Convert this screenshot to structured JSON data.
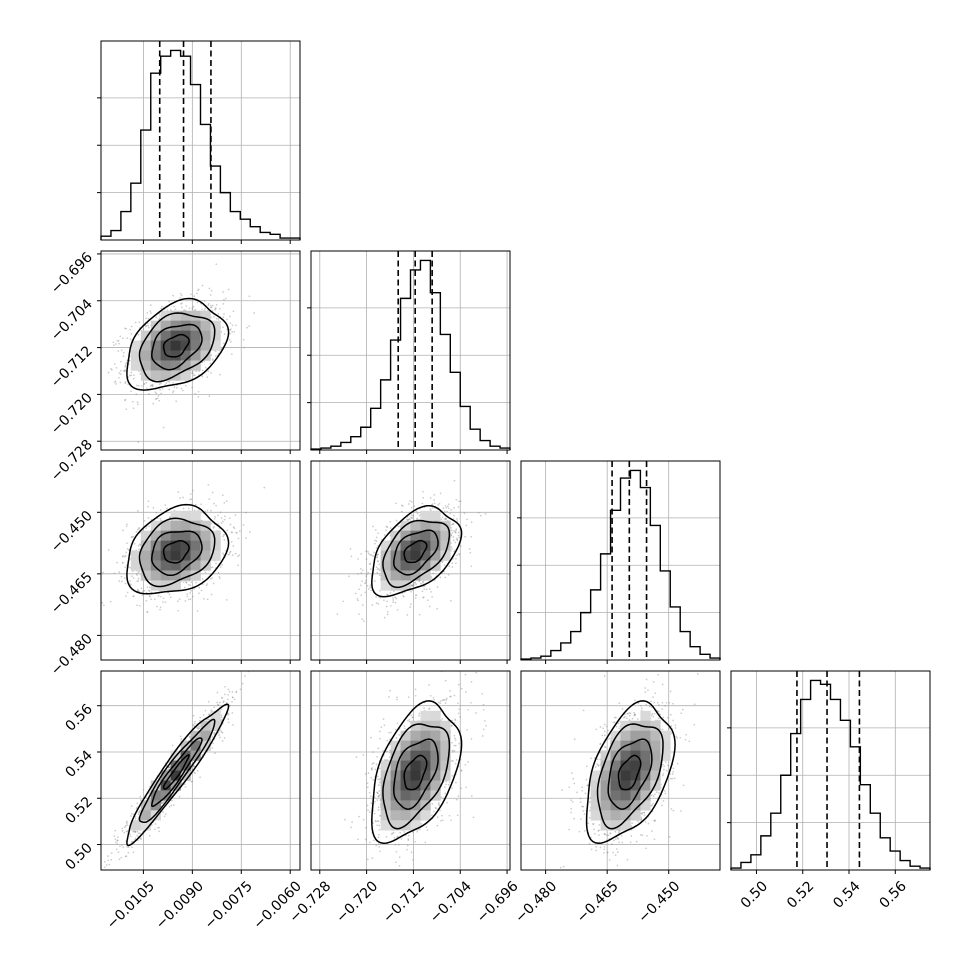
{
  "chart_data": {
    "type": "corner",
    "grid": true,
    "parameters": [
      {
        "range": [
          -0.0118,
          -0.0057
        ],
        "ticks": [
          -0.0105,
          -0.009,
          -0.0075,
          -0.006
        ],
        "tick_labels": [
          "−0.0105",
          "−0.0090",
          "−0.0075",
          "−0.0060"
        ],
        "quantiles": [
          -0.01,
          -0.00927,
          -0.00843
        ],
        "hist": [
          0.02,
          0.05,
          0.15,
          0.3,
          0.58,
          0.88,
          0.97,
          1.0,
          0.97,
          0.82,
          0.61,
          0.39,
          0.25,
          0.15,
          0.11,
          0.07,
          0.04,
          0.03,
          0.01,
          0.01
        ],
        "hist_ylim": [
          0,
          1.05
        ],
        "hist_ytick_fractions": [
          0.25,
          0.5,
          0.75
        ],
        "mean": -0.0095,
        "sd": 0.00065
      },
      {
        "range": [
          -0.7295,
          -0.6955
        ],
        "ticks": [
          -0.728,
          -0.72,
          -0.712,
          -0.704,
          -0.696
        ],
        "tick_labels": [
          "−0.728",
          "−0.720",
          "−0.712",
          "−0.704",
          "−0.696"
        ],
        "quantiles": [
          -0.7146,
          -0.7117,
          -0.7088
        ],
        "hist": [
          0.005,
          0.01,
          0.02,
          0.04,
          0.07,
          0.12,
          0.22,
          0.37,
          0.58,
          0.8,
          0.95,
          1.0,
          0.83,
          0.61,
          0.41,
          0.23,
          0.11,
          0.05,
          0.02,
          0.01
        ],
        "hist_ylim": [
          0,
          1.05
        ],
        "hist_ytick_fractions": [
          0.25,
          0.5,
          0.75
        ],
        "mean": -0.7117,
        "sd": 0.0032
      },
      {
        "range": [
          -0.486,
          -0.4375
        ],
        "ticks": [
          -0.48,
          -0.465,
          -0.45
        ],
        "tick_labels": [
          "−0.480",
          "−0.465",
          "−0.450"
        ],
        "quantiles": [
          -0.4638,
          -0.4596,
          -0.4554
        ],
        "hist": [
          0.005,
          0.01,
          0.02,
          0.05,
          0.09,
          0.15,
          0.25,
          0.37,
          0.56,
          0.79,
          0.96,
          1.0,
          0.91,
          0.71,
          0.47,
          0.28,
          0.15,
          0.07,
          0.03,
          0.01
        ],
        "hist_ylim": [
          0,
          1.05
        ],
        "hist_ytick_fractions": [
          0.25,
          0.5,
          0.75
        ],
        "mean": -0.4596,
        "sd": 0.0045
      },
      {
        "range": [
          0.489,
          0.575
        ],
        "ticks": [
          0.5,
          0.52,
          0.54,
          0.56
        ],
        "tick_labels": [
          "0.50",
          "0.52",
          "0.54",
          "0.56"
        ],
        "quantiles": [
          0.5175,
          0.5305,
          0.5445
        ],
        "hist": [
          0.01,
          0.04,
          0.08,
          0.18,
          0.3,
          0.5,
          0.72,
          0.9,
          1.0,
          0.98,
          0.9,
          0.79,
          0.65,
          0.45,
          0.3,
          0.17,
          0.1,
          0.05,
          0.02,
          0.01
        ],
        "hist_ylim": [
          0,
          1.05
        ],
        "hist_ytick_fractions": [
          0.25,
          0.5,
          0.75
        ],
        "mean": 0.531,
        "sd": 0.0125
      }
    ],
    "correlations": {
      "1-0": 0.35,
      "2-0": 0.25,
      "2-1": 0.45,
      "3-0": 0.95,
      "3-1": 0.45,
      "3-2": 0.45
    },
    "contour_levels": [
      0.5,
      1.0,
      1.5,
      2.0
    ],
    "colors": {
      "line": "#000000",
      "points": "#8c8c8c",
      "grid": "#b0b0b0",
      "background": "#ffffff"
    }
  }
}
